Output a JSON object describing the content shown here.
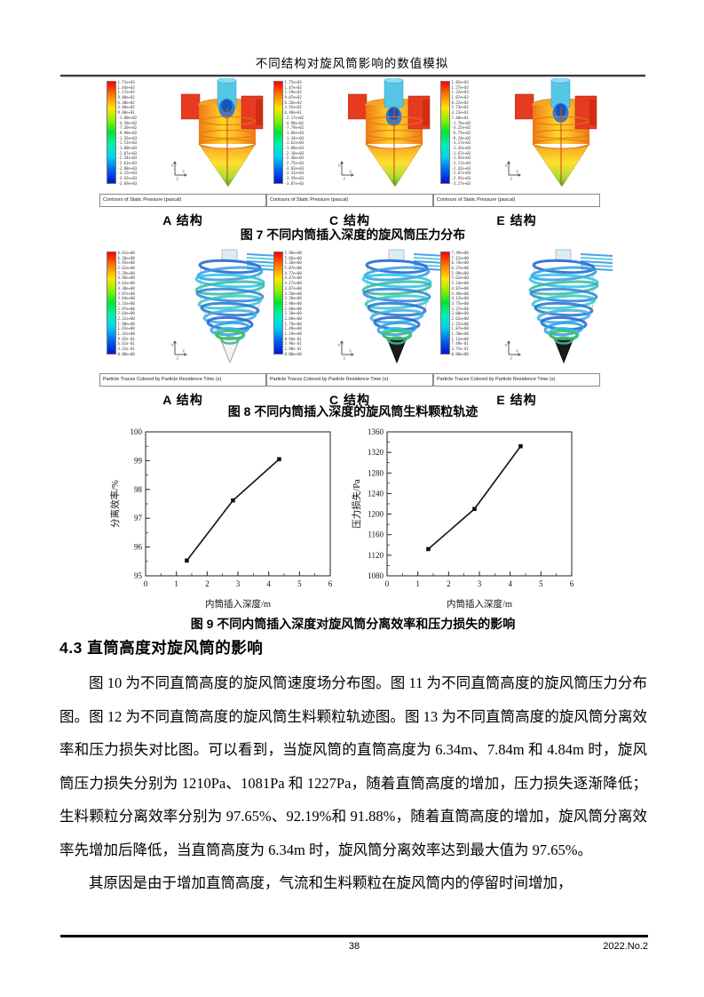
{
  "page": {
    "header_title": "不同结构对旋风筒影响的数值模拟",
    "footer": {
      "page_number": "38",
      "issue": "2022.No.2"
    }
  },
  "figure7": {
    "kind": "pressure",
    "caption": "图 7 不同内筒插入深度的旋风筒压力分布",
    "panel_footer": "Contours of Static Pressure (pascal)",
    "panels": [
      {
        "label": "A 结构",
        "colorbar": [
          "1.71e+03",
          "1.44e+03",
          "1.17e+03",
          "9.00e+02",
          "6.30e+02",
          "3.60e+02",
          "9.00e+01",
          "-1.80e+02",
          "-4.50e+02",
          "-7.20e+02",
          "-9.90e+02",
          "-1.26e+03",
          "-1.53e+03",
          "-1.80e+03",
          "-2.07e+03",
          "-2.34e+03",
          "-2.61e+03",
          "-2.88e+03",
          "-3.15e+03",
          "-3.42e+03",
          "-3.69e+03"
        ]
      },
      {
        "label": "C 结构",
        "colorbar": [
          "1.75e+03",
          "1.47e+03",
          "1.19e+03",
          "9.07e+02",
          "6.26e+02",
          "3.45e+02",
          "6.40e+01",
          "-2.17e+02",
          "-4.98e+02",
          "-7.79e+02",
          "-1.06e+03",
          "-1.34e+03",
          "-1.62e+03",
          "-1.90e+03",
          "-2.18e+03",
          "-2.46e+03",
          "-2.75e+03",
          "-3.03e+03",
          "-3.31e+03",
          "-3.59e+03",
          "-3.87e+03"
        ]
      },
      {
        "label": "E 结构",
        "colorbar": [
          "1.82e+03",
          "1.57e+03",
          "1.32e+03",
          "1.07e+03",
          "8.22e+02",
          "5.73e+02",
          "3.23e+02",
          "7.40e+01",
          "-1.76e+02",
          "-4.25e+02",
          "-6.75e+02",
          "-9.24e+02",
          "-1.17e+03",
          "-1.42e+03",
          "-1.67e+03",
          "-1.92e+03",
          "-2.17e+03",
          "-2.42e+03",
          "-2.67e+03",
          "-2.92e+03",
          "-3.17e+03"
        ]
      }
    ]
  },
  "figure8": {
    "kind": "traces",
    "caption": "图 8 不同内筒插入深度的旋风筒生料颗粒轨迹",
    "panel_footer": "Particle Traces Colored by Particle Residence Time (s)",
    "panels": [
      {
        "label": "A 结构",
        "tip_dark": false,
        "colorbar": [
          "6.61e+00",
          "6.28e+00",
          "5.95e+00",
          "5.62e+00",
          "5.29e+00",
          "4.96e+00",
          "4.63e+00",
          "4.30e+00",
          "3.97e+00",
          "3.64e+00",
          "3.31e+00",
          "2.97e+00",
          "2.64e+00",
          "2.31e+00",
          "1.98e+00",
          "1.65e+00",
          "1.32e+00",
          "9.92e-01",
          "6.61e-01",
          "3.31e-01",
          "0.00e+00"
        ]
      },
      {
        "label": "C 结构",
        "tip_dark": true,
        "colorbar": [
          "5.96e+00",
          "5.66e+00",
          "5.36e+00",
          "5.07e+00",
          "4.77e+00",
          "4.47e+00",
          "4.17e+00",
          "3.87e+00",
          "3.58e+00",
          "3.28e+00",
          "2.98e+00",
          "2.68e+00",
          "2.38e+00",
          "2.09e+00",
          "1.79e+00",
          "1.49e+00",
          "1.19e+00",
          "8.94e-01",
          "5.96e-01",
          "2.98e-01",
          "0.00e+00"
        ]
      },
      {
        "label": "E 结构",
        "tip_dark": true,
        "colorbar": [
          "7.49e+00",
          "7.12e+00",
          "6.74e+00",
          "6.37e+00",
          "5.99e+00",
          "5.62e+00",
          "5.24e+00",
          "4.87e+00",
          "4.49e+00",
          "4.12e+00",
          "3.75e+00",
          "3.37e+00",
          "3.00e+00",
          "2.62e+00",
          "2.25e+00",
          "1.87e+00",
          "1.50e+00",
          "1.12e+00",
          "7.49e-01",
          "3.75e-01",
          "0.00e+00"
        ]
      }
    ]
  },
  "figure9": {
    "caption": "图 9 不同内筒插入深度对旋风筒分离效率和压力损失的影响"
  },
  "chart_data": [
    {
      "type": "line",
      "x": [
        1.34,
        2.84,
        4.34
      ],
      "y": [
        95.53,
        97.62,
        99.05
      ],
      "xlabel": "内筒插入深度/m",
      "ylabel": "分离效率/%",
      "xlim": [
        0,
        6
      ],
      "ylim": [
        95,
        100
      ],
      "xticks": [
        0,
        1,
        2,
        3,
        4,
        5,
        6
      ],
      "yticks": [
        95,
        96,
        97,
        98,
        99,
        100
      ],
      "grid": false,
      "legend": null,
      "marker": "square",
      "line_color": "#111111"
    },
    {
      "type": "line",
      "x": [
        1.34,
        2.84,
        4.34
      ],
      "y": [
        1132,
        1210,
        1332
      ],
      "xlabel": "内筒插入深度/m",
      "ylabel": "压力损失/Pa",
      "xlim": [
        0,
        6
      ],
      "ylim": [
        1080,
        1360
      ],
      "xticks": [
        0,
        1,
        2,
        3,
        4,
        5,
        6
      ],
      "yticks": [
        1080,
        1120,
        1160,
        1200,
        1240,
        1280,
        1320,
        1360
      ],
      "grid": false,
      "legend": null,
      "marker": "square",
      "line_color": "#111111"
    }
  ],
  "section": {
    "heading": "4.3 直筒高度对旋风筒的影响"
  },
  "paragraphs": [
    "图 10 为不同直筒高度的旋风筒速度场分布图。图 11 为不同直筒高度的旋风筒压力分布图。图 12 为不同直筒高度的旋风筒生料颗粒轨迹图。图 13 为不同直筒高度的旋风筒分离效率和压力损失对比图。可以看到，当旋风筒的直筒高度为 6.34m、7.84m 和 4.84m 时，旋风筒压力损失分别为 1210Pa、1081Pa 和 1227Pa，随着直筒高度的增加，压力损失逐渐降低；生料颗粒分离效率分别为 97.65%、92.19%和 91.88%，随着直筒高度的增加，旋风筒分离效率先增加后降低，当直筒高度为 6.34m 时，旋风筒分离效率达到最大值为 97.65%。",
    "其原因是由于增加直筒高度，气流和生料颗粒在旋风筒内的停留时间增加，"
  ],
  "colors": {
    "inlet_red": "#e63b20",
    "inner_tube_cyan": "#56c6e6",
    "body_orange": "#f07818",
    "cone_green": "#38b040",
    "trace_blue": "#2e9de0"
  }
}
